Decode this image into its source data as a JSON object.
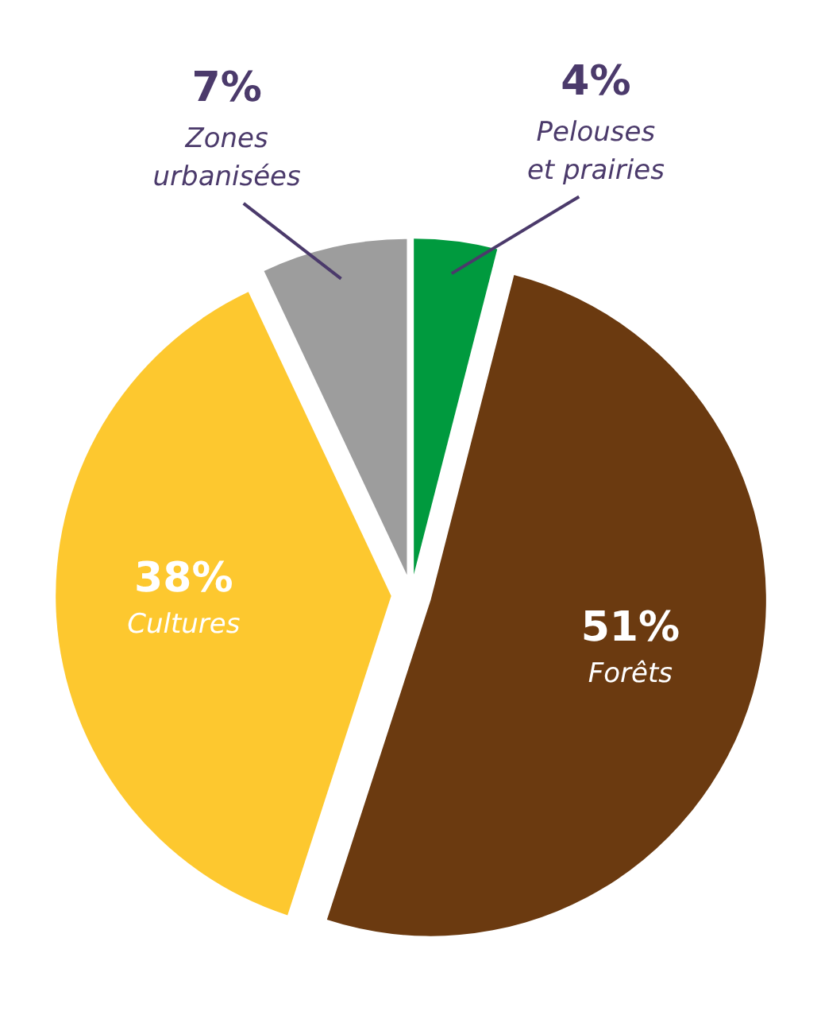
{
  "chart_data": {
    "type": "pie",
    "categories": [
      "Pelouses\net prairies",
      "Forêts",
      "Cultures",
      "Zones\nurbanisées"
    ],
    "values": [
      4,
      51,
      38,
      7
    ],
    "colors": [
      "#009a3e",
      "#6b3a10",
      "#fdc82f",
      "#9d9d9d"
    ],
    "value_labels": [
      "4%",
      "51%",
      "38%",
      "7%"
    ]
  }
}
